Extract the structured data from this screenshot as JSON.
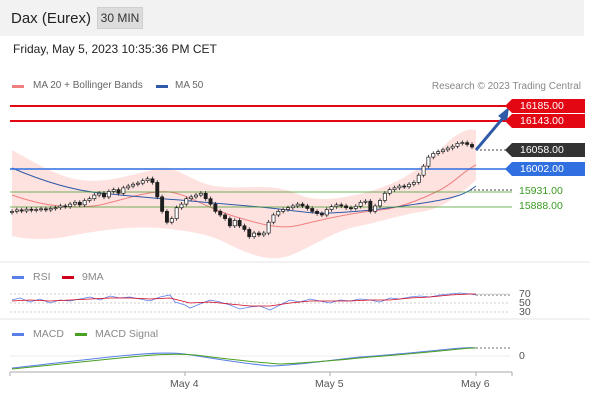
{
  "header": {
    "instrument": "Dax (Eurex)",
    "timeframe": "30 MIN",
    "timestamp": "Friday, May 5, 2023 10:35:36 PM CET"
  },
  "legend": {
    "ma20_label": "MA 20 + Bollinger Bands",
    "ma50_label": "MA 50",
    "credit": "Research © 2023 Trading Central"
  },
  "levels": {
    "resistance_2": "16185.00",
    "resistance_1": "16143.00",
    "last_price": "16058.00",
    "pivot": "16002.00",
    "support_1": "15931.00",
    "support_2": "15888.00"
  },
  "rsi": {
    "label": "RSI",
    "signal_label": "9MA",
    "ticks": [
      "70",
      "50",
      "30"
    ]
  },
  "macd": {
    "label": "MACD",
    "signal_label": "MACD Signal",
    "ticks": [
      "0"
    ]
  },
  "x_axis": {
    "labels": [
      "May 4",
      "May 5",
      "May 6"
    ]
  },
  "colors": {
    "resistance": "#e30613",
    "pivot": "#2f6fe0",
    "support": "#3a9a20",
    "ma20": "#f08080",
    "ma50": "#2f5aa8",
    "bollinger_fill": "#fde0de",
    "candle": "#1e1e1e",
    "rsi_line": "#5b7fe8",
    "rsi_signal": "#d0021b",
    "macd_line": "#5b7fe8",
    "macd_signal": "#4aa020"
  },
  "chart_data": {
    "type": "candlestick",
    "title": "Dax (Eurex)",
    "timeframe": "30 MIN",
    "ylim": [
      15740,
      16210
    ],
    "x_labels": [
      "May 4",
      "May 5",
      "May 6"
    ],
    "close_series": [
      15880,
      15884,
      15881,
      15886,
      15883,
      15885,
      15887,
      15884,
      15888,
      15890,
      15895,
      15893,
      15900,
      15905,
      15898,
      15910,
      15915,
      15925,
      15930,
      15920,
      15935,
      15940,
      15930,
      15945,
      15950,
      15955,
      15958,
      15965,
      15970,
      15960,
      15920,
      15880,
      15850,
      15860,
      15890,
      15900,
      15915,
      15920,
      15925,
      15930,
      15915,
      15900,
      15880,
      15870,
      15860,
      15840,
      15855,
      15840,
      15830,
      15810,
      15820,
      15815,
      15820,
      15850,
      15870,
      15880,
      15885,
      15890,
      15895,
      15900,
      15895,
      15888,
      15880,
      15874,
      15870,
      15885,
      15893,
      15898,
      15895,
      15890,
      15888,
      15894,
      15905,
      15908,
      15880,
      15895,
      15910,
      15930,
      15940,
      15945,
      15950,
      15948,
      15955,
      15960,
      15980,
      16005,
      16030,
      16040,
      16045,
      16050,
      16055,
      16060,
      16068,
      16070,
      16065,
      16058
    ],
    "rsi": {
      "name": "RSI",
      "range": [
        30,
        70
      ],
      "last": 65,
      "signal": "9MA"
    },
    "macd": {
      "name": "MACD",
      "signal": "MACD Signal",
      "zero_line": 0
    }
  }
}
